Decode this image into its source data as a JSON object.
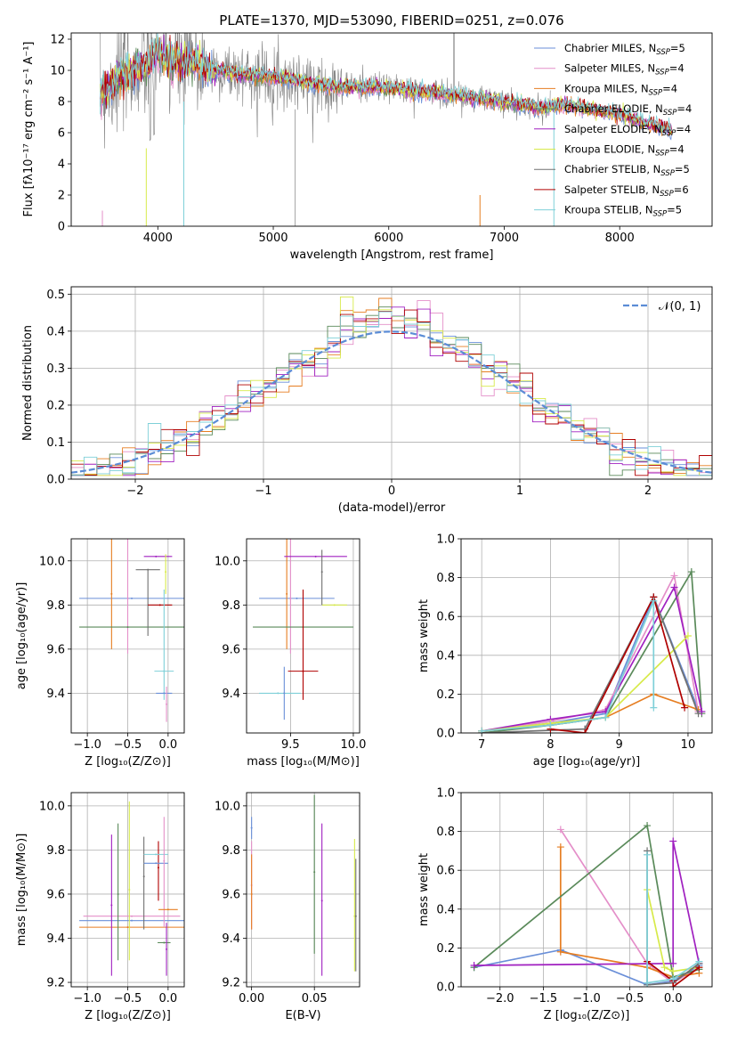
{
  "colors": [
    "#6a8fd8",
    "#e48fc9",
    "#e67e22",
    "#5a8a5a",
    "#a020c0",
    "#d7ea4a",
    "#707070",
    "#b00000",
    "#7fd0d8"
  ],
  "legend_labels": [
    "Chabrier MILES, N_SSP=5",
    "Salpeter MILES, N_SSP=4",
    "Kroupa MILES, N_SSP=4",
    "Chabrier ELODIE, N_SSP=4",
    "Salpeter ELODIE, N_SSP=4",
    "Kroupa ELODIE, N_SSP=4",
    "Chabrier STELIB, N_SSP=5",
    "Salpeter STELIB, N_SSP=6",
    "Kroupa STELIB, N_SSP=5"
  ],
  "chart_data": [
    {
      "id": "spectrum",
      "type": "line",
      "title": "PLATE=1370, MJD=53090, FIBERID=0251, z=0.076",
      "xlabel": "wavelength [Angstrom, rest frame]",
      "ylabel": "Flux [f_λ10^−17 erg cm^−2 s^−1 A^−1]",
      "xlim": [
        3250,
        8800
      ],
      "ylim": [
        0,
        12.4
      ],
      "xticks": [
        4000,
        5000,
        6000,
        7000,
        8000
      ],
      "yticks": [
        0,
        2,
        4,
        6,
        8,
        10,
        12
      ],
      "grid": false,
      "legend": "top-right",
      "continuum": {
        "x": [
          3500,
          3700,
          3900,
          4000,
          4100,
          4300,
          4500,
          5000,
          5500,
          6000,
          6500,
          7000,
          7300,
          7500,
          8000,
          8500
        ],
        "y": [
          8.4,
          9.8,
          10.2,
          11.2,
          10.6,
          10.5,
          10.0,
          9.6,
          9.0,
          8.9,
          8.5,
          8.0,
          7.6,
          7.8,
          7.2,
          6.0
        ]
      }
    },
    {
      "id": "residuals",
      "type": "histogram",
      "xlabel": "(data-model)/error",
      "ylabel": "Normed distribution",
      "xlim": [
        -2.5,
        2.5
      ],
      "ylim": [
        0,
        0.52
      ],
      "xticks": [
        -2,
        -1,
        0,
        1,
        2
      ],
      "yticks": [
        0.0,
        0.1,
        0.2,
        0.3,
        0.4,
        0.5
      ],
      "grid": true,
      "legend": "top-right",
      "reference": "𝒩(0, 1)",
      "bin_width": 0.1
    },
    {
      "id": "age-vs-z",
      "type": "errorbar",
      "xlabel": "Z [log10(Z/Z⊙)]",
      "ylabel": "age [log10(age/yr)]",
      "xlim": [
        -1.2,
        0.2
      ],
      "ylim": [
        9.22,
        10.1
      ],
      "xticks": [
        -1.0,
        -0.5,
        0.0
      ],
      "yticks": [
        9.4,
        9.6,
        9.8,
        10.0
      ],
      "grid": true,
      "points": [
        {
          "x": -0.45,
          "xerr": [
            0.65,
            0.65
          ],
          "y": 9.83,
          "yerr": [
            0.0,
            0.0
          ]
        },
        {
          "x": -0.5,
          "xerr": [
            0.0,
            0.0
          ],
          "y": 9.83,
          "yerr": [
            0.25,
            0.28
          ]
        },
        {
          "x": -0.7,
          "xerr": [
            0.0,
            0.0
          ],
          "y": 9.85,
          "yerr": [
            0.25,
            0.25
          ]
        },
        {
          "x": -0.5,
          "xerr": [
            0.6,
            0.7
          ],
          "y": 9.7,
          "yerr": [
            0.0,
            0.0
          ]
        },
        {
          "x": -0.15,
          "xerr": [
            0.15,
            0.2
          ],
          "y": 10.02,
          "yerr": [
            0.0,
            0.0
          ]
        },
        {
          "x": -0.03,
          "xerr": [
            0.0,
            0.0
          ],
          "y": 9.95,
          "yerr": [
            0.1,
            0.08
          ]
        },
        {
          "x": -0.25,
          "xerr": [
            0.15,
            0.15
          ],
          "y": 9.96,
          "yerr": [
            0.3,
            0.0
          ]
        },
        {
          "x": -0.1,
          "xerr": [
            0.15,
            0.15
          ],
          "y": 9.8,
          "yerr": [
            0.0,
            0.0
          ]
        },
        {
          "x": -0.05,
          "xerr": [
            0.12,
            0.12
          ],
          "y": 9.5,
          "yerr": [
            0.13,
            0.37
          ]
        },
        {
          "x": -0.05,
          "xerr": [
            0.1,
            0.1
          ],
          "y": 9.4,
          "yerr": [
            0.0,
            0.0
          ]
        },
        {
          "x": -0.02,
          "xerr": [
            0.0,
            0.0
          ],
          "y": 9.35,
          "yerr": [
            0.08,
            0.08
          ]
        }
      ]
    },
    {
      "id": "age-vs-mass",
      "type": "errorbar",
      "xlabel": "mass [log10(M/M⊙)]",
      "ylabel": "",
      "xlim": [
        9.15,
        10.05
      ],
      "ylim": [
        9.22,
        10.1
      ],
      "xticks": [
        9.5,
        10.0
      ],
      "yticks": [
        9.4,
        9.6,
        9.8,
        10.0
      ],
      "grid": true,
      "points": [
        {
          "x": 9.55,
          "xerr": [
            0.3,
            0.3
          ],
          "y": 9.83,
          "yerr": [
            0.0,
            0.0
          ]
        },
        {
          "x": 9.5,
          "xerr": [
            0.0,
            0.0
          ],
          "y": 9.83,
          "yerr": [
            0.25,
            0.28
          ]
        },
        {
          "x": 9.47,
          "xerr": [
            0.0,
            0.0
          ],
          "y": 9.85,
          "yerr": [
            0.25,
            0.25
          ]
        },
        {
          "x": 9.6,
          "xerr": [
            0.4,
            0.4
          ],
          "y": 9.7,
          "yerr": [
            0.0,
            0.0
          ]
        },
        {
          "x": 9.7,
          "xerr": [
            0.25,
            0.25
          ],
          "y": 10.02,
          "yerr": [
            0.0,
            0.0
          ]
        },
        {
          "x": 9.85,
          "xerr": [
            0.1,
            0.1
          ],
          "y": 9.8,
          "yerr": [
            0.0,
            0.0
          ]
        },
        {
          "x": 9.75,
          "xerr": [
            0.0,
            0.0
          ],
          "y": 9.95,
          "yerr": [
            0.15,
            0.1
          ]
        },
        {
          "x": 9.6,
          "xerr": [
            0.12,
            0.12
          ],
          "y": 9.5,
          "yerr": [
            0.13,
            0.37
          ]
        },
        {
          "x": 9.4,
          "xerr": [
            0.15,
            0.18
          ],
          "y": 9.4,
          "yerr": [
            0.0,
            0.0
          ]
        },
        {
          "x": 9.45,
          "xerr": [
            0.0,
            0.0
          ],
          "y": 9.4,
          "yerr": [
            0.12,
            0.12
          ]
        }
      ]
    },
    {
      "id": "weight-vs-age",
      "type": "line",
      "xlabel": "age [log10(age/yr)]",
      "ylabel": "mass weight",
      "xlim": [
        6.7,
        10.35
      ],
      "ylim": [
        0,
        1.0
      ],
      "xticks": [
        7,
        8,
        9,
        10
      ],
      "yticks": [
        0.0,
        0.2,
        0.4,
        0.6,
        0.8,
        1.0
      ],
      "grid": true,
      "series": [
        {
          "x": [
            7.0,
            8.0,
            8.8,
            9.5,
            10.15
          ],
          "y": [
            0.01,
            0.05,
            0.1,
            0.7,
            0.12
          ]
        },
        {
          "x": [
            7.0,
            8.0,
            8.8,
            9.8,
            10.15
          ],
          "y": [
            0.01,
            0.06,
            0.12,
            0.81,
            0.11
          ]
        },
        {
          "x": [
            7.0,
            8.0,
            8.8,
            9.5,
            10.15
          ],
          "y": [
            0.01,
            0.04,
            0.08,
            0.2,
            0.12
          ]
        },
        {
          "x": [
            7.0,
            8.0,
            8.8,
            10.05,
            10.2
          ],
          "y": [
            0.0,
            0.04,
            0.08,
            0.83,
            0.1
          ]
        },
        {
          "x": [
            7.0,
            8.0,
            8.8,
            9.8,
            10.2
          ],
          "y": [
            0.01,
            0.07,
            0.11,
            0.75,
            0.11
          ]
        },
        {
          "x": [
            7.0,
            8.0,
            8.8,
            10.0
          ],
          "y": [
            0.01,
            0.05,
            0.08,
            0.5
          ]
        },
        {
          "x": [
            7.0,
            8.5,
            9.5,
            10.15
          ],
          "y": [
            0.0,
            0.02,
            0.7,
            0.1
          ]
        },
        {
          "x": [
            8.0,
            8.5,
            9.5,
            9.95
          ],
          "y": [
            0.02,
            0.0,
            0.7,
            0.13
          ]
        },
        {
          "x": [
            7.0,
            8.0,
            8.8,
            9.5,
            9.5
          ],
          "y": [
            0.01,
            0.04,
            0.08,
            0.68,
            0.13
          ]
        }
      ]
    },
    {
      "id": "mass-vs-z",
      "type": "errorbar",
      "xlabel": "Z [log10(Z/Z⊙)]",
      "ylabel": "mass [log10(M/M⊙)]",
      "xlim": [
        -1.2,
        0.2
      ],
      "ylim": [
        9.18,
        10.06
      ],
      "xticks": [
        -1.0,
        -0.5,
        0.0
      ],
      "yticks": [
        9.2,
        9.4,
        9.6,
        9.8,
        10.0
      ],
      "grid": true,
      "points": [
        {
          "x": -0.45,
          "xerr": [
            0.65,
            0.65
          ],
          "y": 9.48,
          "yerr": [
            0.0,
            0.0
          ]
        },
        {
          "x": -0.45,
          "xerr": [
            0.6,
            0.6
          ],
          "y": 9.5,
          "yerr": [
            0.0,
            0.0
          ]
        },
        {
          "x": -0.5,
          "xerr": [
            0.6,
            0.7
          ],
          "y": 9.45,
          "yerr": [
            0.0,
            0.0
          ]
        },
        {
          "x": -0.62,
          "xerr": [
            0.0,
            0.0
          ],
          "y": 9.6,
          "yerr": [
            0.3,
            0.32
          ]
        },
        {
          "x": -0.7,
          "xerr": [
            0.0,
            0.0
          ],
          "y": 9.55,
          "yerr": [
            0.32,
            0.32
          ]
        },
        {
          "x": -0.48,
          "xerr": [
            0.0,
            0.0
          ],
          "y": 9.62,
          "yerr": [
            0.32,
            0.4
          ]
        },
        {
          "x": -0.3,
          "xerr": [
            0.0,
            0.0
          ],
          "y": 9.68,
          "yerr": [
            0.24,
            0.18
          ]
        },
        {
          "x": -0.12,
          "xerr": [
            0.0,
            0.0
          ],
          "y": 9.72,
          "yerr": [
            0.15,
            0.12
          ]
        },
        {
          "x": -0.15,
          "xerr": [
            0.15,
            0.15
          ],
          "y": 9.78,
          "yerr": [
            0.0,
            0.0
          ]
        },
        {
          "x": -0.15,
          "xerr": [
            0.15,
            0.15
          ],
          "y": 9.74,
          "yerr": [
            0.0,
            0.0
          ]
        },
        {
          "x": -0.05,
          "xerr": [
            0.0,
            0.0
          ],
          "y": 9.75,
          "yerr": [
            0.3,
            0.2
          ]
        },
        {
          "x": 0.0,
          "xerr": [
            0.12,
            0.12
          ],
          "y": 9.53,
          "yerr": [
            0.0,
            0.0
          ]
        },
        {
          "x": -0.05,
          "xerr": [
            0.08,
            0.08
          ],
          "y": 9.38,
          "yerr": [
            0.0,
            0.0
          ]
        },
        {
          "x": -0.02,
          "xerr": [
            0.0,
            0.0
          ],
          "y": 9.35,
          "yerr": [
            0.12,
            0.12
          ]
        }
      ]
    },
    {
      "id": "mass-vs-ebv",
      "type": "errorbar",
      "xlabel": "E(B-V)",
      "ylabel": "",
      "xlim": [
        -0.004,
        0.086
      ],
      "ylim": [
        9.18,
        10.06
      ],
      "xticks": [
        0.0,
        0.05
      ],
      "yticks": [
        9.2,
        9.4,
        9.6,
        9.8,
        10.0
      ],
      "grid": true,
      "points": [
        {
          "x": 0.0,
          "xerr": [
            0.0,
            0.0
          ],
          "y": 9.9,
          "yerr": [
            0.05,
            0.05
          ]
        },
        {
          "x": 0.0,
          "xerr": [
            0.0,
            0.0
          ],
          "y": 9.64,
          "yerr": [
            0.2,
            0.2
          ]
        },
        {
          "x": 0.0,
          "xerr": [
            0.0,
            0.0
          ],
          "y": 9.6,
          "yerr": [
            0.16,
            0.18
          ]
        },
        {
          "x": 0.05,
          "xerr": [
            0.0,
            0.0
          ],
          "y": 9.7,
          "yerr": [
            0.37,
            0.35
          ]
        },
        {
          "x": 0.056,
          "xerr": [
            0.0,
            0.0
          ],
          "y": 9.57,
          "yerr": [
            0.34,
            0.35
          ]
        },
        {
          "x": 0.082,
          "xerr": [
            0.0,
            0.0
          ],
          "y": 9.5,
          "yerr": [
            0.25,
            0.35
          ]
        },
        {
          "x": 0.083,
          "xerr": [
            0.0,
            0.0
          ],
          "y": 9.5,
          "yerr": [
            0.25,
            0.26
          ]
        }
      ]
    },
    {
      "id": "weight-vs-z",
      "type": "line",
      "xlabel": "Z [log10(Z/Z⊙)]",
      "ylabel": "mass weight",
      "xlim": [
        -2.45,
        0.45
      ],
      "ylim": [
        0,
        1.0
      ],
      "xticks": [
        -2.0,
        -1.5,
        -1.0,
        -0.5,
        0.0
      ],
      "yticks": [
        0.0,
        0.2,
        0.4,
        0.6,
        0.8,
        1.0
      ],
      "grid": true,
      "series": [
        {
          "x": [
            -2.3,
            -1.3,
            -0.3,
            0.0,
            0.3
          ],
          "y": [
            0.1,
            0.19,
            0.01,
            0.03,
            0.11
          ]
        },
        {
          "x": [
            -1.3,
            -0.3,
            0.0,
            0.3
          ],
          "y": [
            0.81,
            0.12,
            0.02,
            0.1
          ]
        },
        {
          "x": [
            -1.3,
            -1.3,
            -0.3,
            0.0,
            0.3
          ],
          "y": [
            0.72,
            0.18,
            0.1,
            0.05,
            0.07
          ]
        },
        {
          "x": [
            -2.3,
            -0.3,
            0.0,
            0.3
          ],
          "y": [
            0.1,
            0.83,
            0.05,
            0.09
          ]
        },
        {
          "x": [
            -2.3,
            0.0,
            0.0,
            0.3
          ],
          "y": [
            0.11,
            0.12,
            0.75,
            0.12
          ]
        },
        {
          "x": [
            -0.3,
            -0.1,
            0.0,
            0.3
          ],
          "y": [
            0.5,
            0.1,
            0.08,
            0.1
          ]
        },
        {
          "x": [
            -0.3,
            -0.3,
            0.0,
            0.3
          ],
          "y": [
            0.7,
            0.01,
            0.02,
            0.12
          ]
        },
        {
          "x": [
            -0.3,
            0.0,
            0.0,
            0.3
          ],
          "y": [
            0.13,
            0.03,
            0.0,
            0.1
          ]
        },
        {
          "x": [
            -0.3,
            -0.3,
            0.0,
            0.3
          ],
          "y": [
            0.68,
            0.02,
            0.04,
            0.13
          ]
        }
      ]
    }
  ]
}
